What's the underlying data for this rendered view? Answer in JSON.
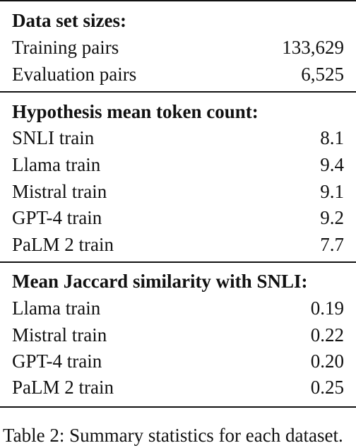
{
  "sections": [
    {
      "header": "Data set sizes:",
      "rows": [
        {
          "label": "Training pairs",
          "value": "133,629"
        },
        {
          "label": "Evaluation pairs",
          "value": "6,525"
        }
      ]
    },
    {
      "header": "Hypothesis mean token count:",
      "rows": [
        {
          "label": "SNLI train",
          "value": "8.1"
        },
        {
          "label": "Llama train",
          "value": "9.4"
        },
        {
          "label": "Mistral train",
          "value": "9.1"
        },
        {
          "label": "GPT-4 train",
          "value": "9.2"
        },
        {
          "label": "PaLM 2 train",
          "value": "7.7"
        }
      ]
    },
    {
      "header": "Mean Jaccard similarity with SNLI:",
      "rows": [
        {
          "label": "Llama train",
          "value": "0.19"
        },
        {
          "label": "Mistral train",
          "value": "0.22"
        },
        {
          "label": "GPT-4 train",
          "value": "0.20"
        },
        {
          "label": "PaLM 2 train",
          "value": "0.25"
        }
      ]
    }
  ],
  "caption": "Table 2: Summary statistics for each dataset."
}
